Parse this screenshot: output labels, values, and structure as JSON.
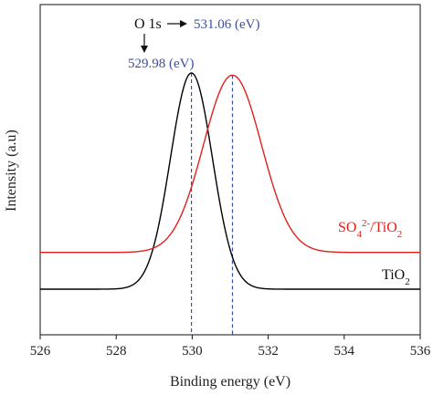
{
  "chart_data": {
    "type": "line",
    "title": "",
    "xlabel": "Binding energy (eV)",
    "ylabel": "Intensity (a.u)",
    "xlim": [
      526,
      536
    ],
    "x_ticks": [
      "526",
      "528",
      "530",
      "532",
      "534",
      "536"
    ],
    "x_tick_values": [
      526,
      528,
      530,
      532,
      534,
      536
    ],
    "y_ticks_shown": false,
    "grid": false,
    "series": [
      {
        "name": "TiO2",
        "color": "#000000",
        "peak_x": 529.98,
        "peak_intensity": 1.0,
        "baseline_intensity": 0.0,
        "fwhm": 1.3
      },
      {
        "name": "SO42-/TiO2",
        "color": "#e3201b",
        "peak_x": 531.06,
        "peak_intensity": 0.99,
        "baseline_intensity": 0.17,
        "fwhm": 1.8
      }
    ],
    "annotations": {
      "core_level": "O 1s",
      "peak_label_tio2": "529.98 (eV)",
      "peak_label_so4": "531.06 (eV)",
      "marker_color": "#3a4fa0"
    }
  }
}
